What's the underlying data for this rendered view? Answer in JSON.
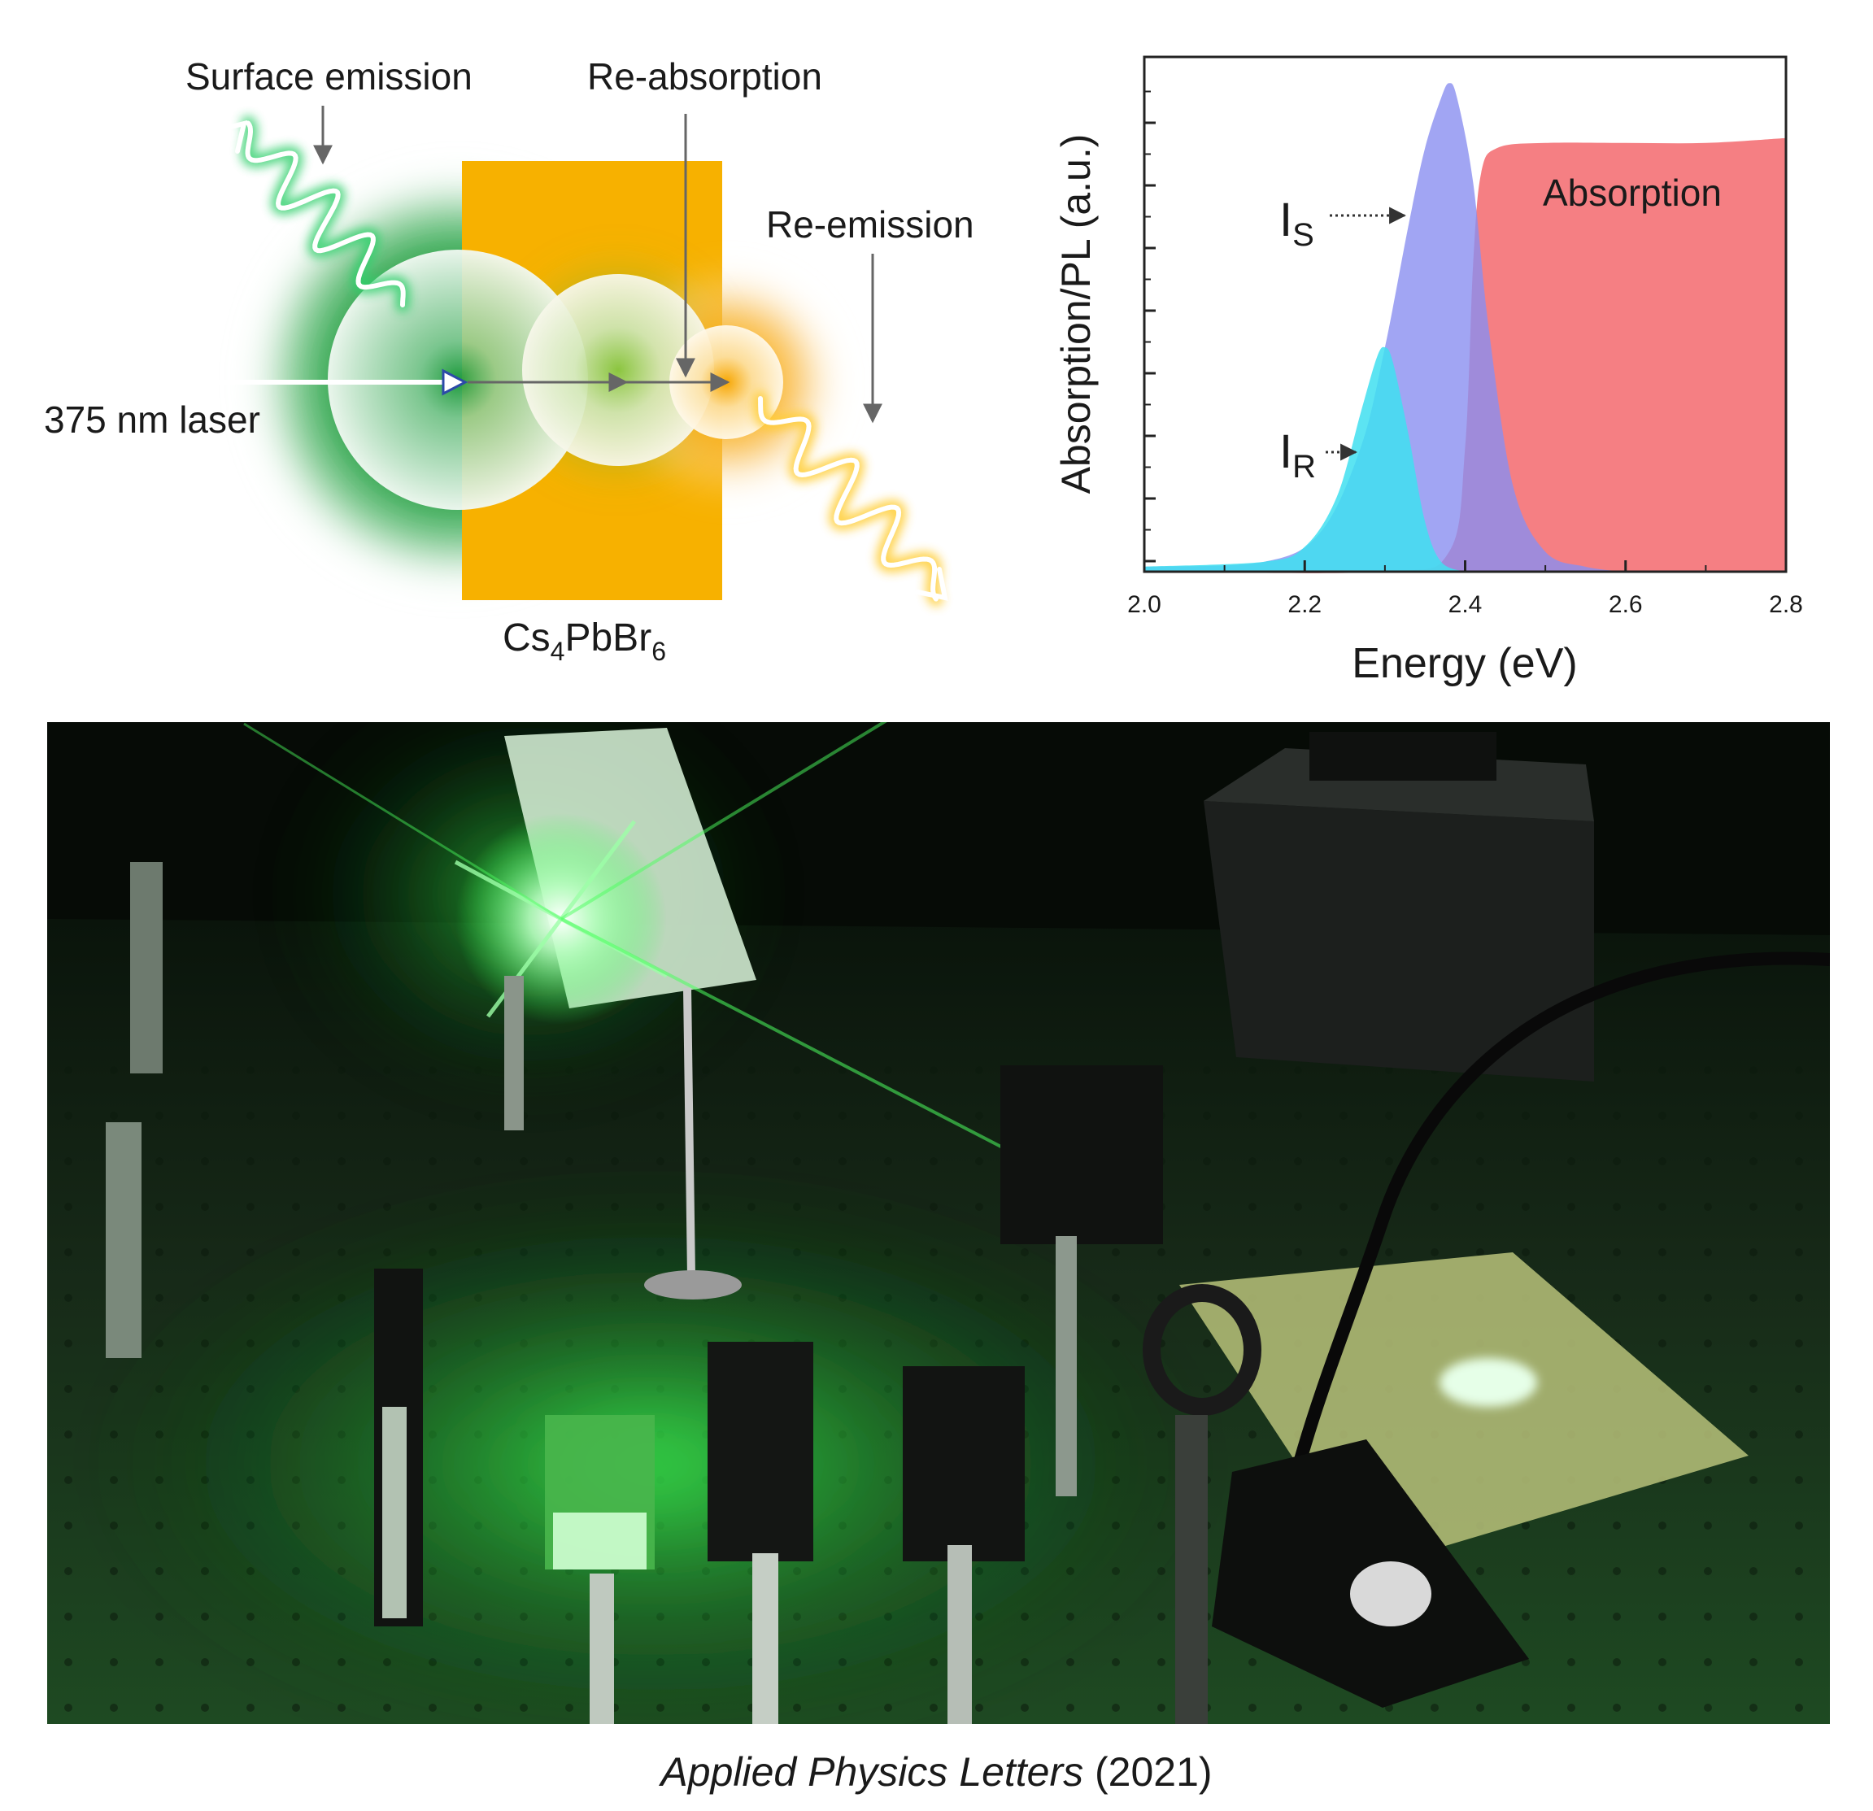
{
  "diagram": {
    "labels": {
      "surface_emission": "Surface emission",
      "re_absorption": "Re-absorption",
      "re_emission": "Re-emission",
      "laser": "375 nm laser",
      "material_base": "Cs",
      "material_sub1": "4",
      "material_mid": "PbBr",
      "material_sub2": "6"
    },
    "colors": {
      "green": "#1f9a3c",
      "orange": "#f7b100",
      "laser_blue": "#2c4aa8",
      "absorption": "#f47478",
      "pl_surface": "#8a8ff0",
      "pl_reabsorbed": "#3fdff0"
    }
  },
  "chart_data": {
    "type": "area",
    "xlabel": "Energy (eV)",
    "ylabel": "Absorption/PL (a.u.)",
    "xlim": [
      2.0,
      2.8
    ],
    "ylim": [
      0,
      1
    ],
    "x_ticks": [
      "2.0",
      "2.2",
      "2.4",
      "2.6",
      "2.8"
    ],
    "y_ticks_labeled": false,
    "grid": false,
    "series": [
      {
        "name": "Absorption",
        "color": "#f47478",
        "x": [
          2.0,
          2.3,
          2.38,
          2.4,
          2.41,
          2.42,
          2.44,
          2.5,
          2.6,
          2.7,
          2.8
        ],
        "y": [
          0.0,
          0.0,
          0.04,
          0.25,
          0.62,
          0.8,
          0.85,
          0.86,
          0.86,
          0.86,
          0.87
        ]
      },
      {
        "name": "I_S",
        "color": "#8a8ff0",
        "x": [
          2.0,
          2.15,
          2.22,
          2.27,
          2.3,
          2.33,
          2.35,
          2.37,
          2.38,
          2.39,
          2.41,
          2.43,
          2.46,
          2.5,
          2.55,
          2.6
        ],
        "y": [
          0.01,
          0.02,
          0.08,
          0.25,
          0.45,
          0.7,
          0.85,
          0.95,
          0.98,
          0.95,
          0.78,
          0.48,
          0.17,
          0.04,
          0.01,
          0.0
        ]
      },
      {
        "name": "I_R",
        "color": "#3fdff0",
        "x": [
          2.0,
          2.15,
          2.2,
          2.24,
          2.27,
          2.29,
          2.3,
          2.31,
          2.33,
          2.35,
          2.37,
          2.4
        ],
        "y": [
          0.01,
          0.02,
          0.05,
          0.15,
          0.32,
          0.43,
          0.45,
          0.42,
          0.27,
          0.1,
          0.02,
          0.0
        ]
      }
    ],
    "annotations": {
      "absorption": "Absorption",
      "is_base": "I",
      "is_sub": "S",
      "ir_base": "I",
      "ir_sub": "R"
    }
  },
  "photo": {
    "colors": {
      "table": "#16321a",
      "glow": "#3dff55"
    }
  },
  "caption": {
    "journal": "Applied Physics Letters",
    "year": "(2021)"
  }
}
